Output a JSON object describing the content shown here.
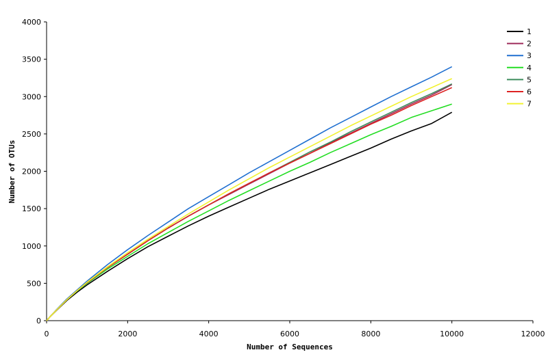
{
  "chart_data": {
    "type": "line",
    "title": "",
    "xlabel": "Number of Sequences",
    "ylabel": "Number of OTUs",
    "xlim": [
      0,
      12000
    ],
    "ylim": [
      0,
      4000
    ],
    "xticks": [
      0,
      2000,
      4000,
      6000,
      8000,
      10000,
      12000
    ],
    "yticks": [
      0,
      500,
      1000,
      1500,
      2000,
      2500,
      3000,
      3500,
      4000
    ],
    "grid": false,
    "legend_position": "top-right",
    "x": [
      0,
      100,
      250,
      500,
      750,
      1000,
      1500,
      2000,
      2500,
      3000,
      3500,
      4000,
      4500,
      5000,
      5500,
      6000,
      6500,
      7000,
      7500,
      8000,
      8500,
      9000,
      9500,
      10000
    ],
    "series": [
      {
        "name": "1",
        "color": "#000000",
        "values": [
          0,
          60,
          140,
          270,
          380,
          480,
          660,
          830,
          990,
          1130,
          1270,
          1400,
          1520,
          1640,
          1760,
          1870,
          1980,
          2090,
          2200,
          2310,
          2430,
          2540,
          2640,
          2790
        ]
      },
      {
        "name": "2",
        "color": "#9e2a5a",
        "values": [
          0,
          60,
          145,
          280,
          400,
          510,
          710,
          890,
          1070,
          1240,
          1400,
          1550,
          1690,
          1830,
          1970,
          2110,
          2240,
          2380,
          2510,
          2640,
          2770,
          2900,
          3020,
          3160
        ]
      },
      {
        "name": "3",
        "color": "#1f6fd0",
        "values": [
          0,
          60,
          150,
          290,
          410,
          530,
          750,
          950,
          1140,
          1320,
          1500,
          1660,
          1820,
          1980,
          2130,
          2280,
          2430,
          2580,
          2720,
          2860,
          3000,
          3130,
          3260,
          3400
        ]
      },
      {
        "name": "4",
        "color": "#22dd22",
        "values": [
          0,
          60,
          145,
          280,
          395,
          500,
          690,
          860,
          1030,
          1180,
          1330,
          1470,
          1610,
          1740,
          1870,
          2000,
          2120,
          2250,
          2370,
          2490,
          2600,
          2720,
          2810,
          2900
        ]
      },
      {
        "name": "5",
        "color": "#3c8c5c",
        "values": [
          0,
          60,
          145,
          280,
          400,
          510,
          710,
          890,
          1070,
          1240,
          1400,
          1550,
          1700,
          1840,
          1980,
          2120,
          2260,
          2390,
          2530,
          2660,
          2790,
          2920,
          3040,
          3170
        ]
      },
      {
        "name": "6",
        "color": "#dd2222",
        "values": [
          0,
          60,
          145,
          280,
          400,
          510,
          710,
          890,
          1070,
          1240,
          1400,
          1550,
          1700,
          1840,
          1980,
          2110,
          2240,
          2370,
          2500,
          2630,
          2750,
          2880,
          3000,
          3120
        ]
      },
      {
        "name": "7",
        "color": "#f2f230",
        "values": [
          0,
          60,
          145,
          280,
          400,
          515,
          720,
          910,
          1090,
          1260,
          1430,
          1590,
          1750,
          1900,
          2050,
          2190,
          2330,
          2470,
          2610,
          2740,
          2870,
          3000,
          3120,
          3240
        ]
      }
    ]
  }
}
